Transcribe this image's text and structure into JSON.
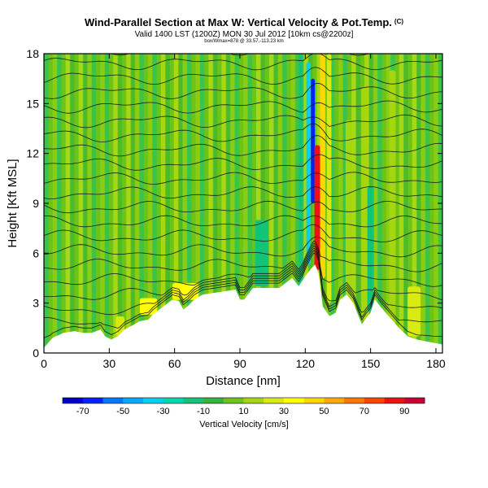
{
  "header": {
    "title": "Wind-Parallel Section at Max W: Vertical Velocity & Pot.Temp.",
    "title_mark": "(C)",
    "subtitle": "Valid 1400 LST (1200Z) MON 30 Jul 2012 [10km cs@2200z]",
    "subsubtitle": "box/Wmax=878 @ 33.57,-113.23 km"
  },
  "chart_data": {
    "type": "heatmap",
    "xlabel": "Distance [nm]",
    "ylabel": "Height [Kft MSL]",
    "xlim": [
      0,
      183
    ],
    "ylim": [
      0,
      18
    ],
    "x_ticks": [
      0,
      30,
      60,
      90,
      120,
      150,
      180
    ],
    "y_ticks": [
      0,
      3,
      6,
      9,
      12,
      15,
      18
    ],
    "x_tick_labels": [
      "0",
      "30",
      "60",
      "90",
      "120",
      "150",
      "180"
    ],
    "y_tick_labels": [
      "0",
      "3",
      "6",
      "9",
      "12",
      "15",
      "18"
    ],
    "colorbar": {
      "label": "Vertical Velocity [cm/s]",
      "tick_labels": [
        "-70",
        "-50",
        "-30",
        "-10",
        "10",
        "30",
        "50",
        "70",
        "90"
      ],
      "tick_values": [
        -70,
        -50,
        -30,
        -10,
        10,
        30,
        50,
        70,
        90
      ],
      "range": [
        -80,
        100
      ],
      "bins": [
        {
          "from": -80,
          "to": -70,
          "color": "#0000cc"
        },
        {
          "from": -70,
          "to": -60,
          "color": "#0022ff"
        },
        {
          "from": -60,
          "to": -50,
          "color": "#0077ff"
        },
        {
          "from": -50,
          "to": -40,
          "color": "#00aaff"
        },
        {
          "from": -40,
          "to": -30,
          "color": "#00d2f0"
        },
        {
          "from": -30,
          "to": -20,
          "color": "#00d8b0"
        },
        {
          "from": -20,
          "to": -10,
          "color": "#11c477"
        },
        {
          "from": -10,
          "to": 0,
          "color": "#33b43a"
        },
        {
          "from": 0,
          "to": 10,
          "color": "#6cc418"
        },
        {
          "from": 10,
          "to": 20,
          "color": "#a6d60e"
        },
        {
          "from": 20,
          "to": 30,
          "color": "#d8ea10"
        },
        {
          "from": 30,
          "to": 40,
          "color": "#ffff00"
        },
        {
          "from": 40,
          "to": 50,
          "color": "#ffd600"
        },
        {
          "from": 50,
          "to": 60,
          "color": "#ffaa00"
        },
        {
          "from": 60,
          "to": 70,
          "color": "#ff7700"
        },
        {
          "from": 70,
          "to": 80,
          "color": "#ff4400"
        },
        {
          "from": 80,
          "to": 90,
          "color": "#ee1111"
        },
        {
          "from": 90,
          "to": 100,
          "color": "#cc0033"
        }
      ]
    },
    "terrain_profile": {
      "x": [
        0,
        2,
        4,
        9,
        14,
        18,
        22,
        26,
        28,
        31,
        34,
        37,
        40,
        44,
        48,
        50,
        53,
        56,
        59,
        62,
        64,
        66,
        69,
        73,
        78,
        83,
        88,
        90,
        92,
        96,
        100,
        104,
        108,
        112,
        114,
        117,
        120,
        123,
        124.5,
        126,
        128,
        131,
        134,
        136,
        139,
        142,
        146,
        148,
        150,
        152,
        155,
        159,
        163,
        167,
        171,
        175,
        179,
        183
      ],
      "height": [
        0.3,
        0.6,
        0.9,
        1.2,
        1.3,
        1.2,
        1.2,
        1.4,
        1.0,
        0.8,
        1.0,
        1.4,
        1.6,
        1.9,
        2.0,
        2.3,
        2.6,
        2.9,
        3.2,
        3.1,
        2.6,
        2.8,
        3.2,
        3.5,
        3.6,
        3.7,
        3.8,
        3.2,
        3.2,
        3.9,
        3.9,
        3.9,
        3.9,
        4.3,
        4.5,
        4.0,
        4.6,
        5.1,
        5.3,
        4.8,
        2.8,
        2.2,
        2.4,
        3.2,
        3.5,
        3.0,
        1.7,
        2.1,
        2.4,
        3.2,
        2.7,
        2.1,
        1.5,
        1.0,
        0.8,
        0.7,
        0.6,
        0.5
      ]
    },
    "vertical_velocity_features": [
      {
        "x_center": 121.5,
        "width": 2.0,
        "y_range": [
          5.3,
          17.5
        ],
        "w": -40
      },
      {
        "x_center": 123.5,
        "width": 1.8,
        "y_range": [
          9.0,
          16.5
        ],
        "w": -70
      },
      {
        "x_center": 125.5,
        "width": 2.6,
        "y_range": [
          5.0,
          12.5
        ],
        "w": 85
      },
      {
        "x_center": 128,
        "width": 2.4,
        "y_range": [
          4.5,
          18
        ],
        "w": 40
      },
      {
        "x_center": 131,
        "width": 2.0,
        "y_range": [
          3.0,
          18
        ],
        "w": 25
      },
      {
        "x_center": 118,
        "width": 2.0,
        "y_range": [
          3.5,
          18
        ],
        "w": -20
      },
      {
        "x_center": 140,
        "width": 3.0,
        "y_range": [
          2.5,
          14
        ],
        "w": 15
      },
      {
        "x_center": 147,
        "width": 2.5,
        "y_range": [
          2.0,
          16
        ],
        "w": 15
      },
      {
        "x_center": 160,
        "width": 3.0,
        "y_range": [
          1.5,
          17
        ],
        "w": 15
      },
      {
        "x_center": 65,
        "width": 12,
        "y_range": [
          3.2,
          4.2
        ],
        "w": 35
      },
      {
        "x_center": 48,
        "width": 8,
        "y_range": [
          2.3,
          3.3
        ],
        "w": 30
      },
      {
        "x_center": 35,
        "width": 4,
        "y_range": [
          1.0,
          2.2
        ],
        "w": 20
      },
      {
        "x_center": 100,
        "width": 6,
        "y_range": [
          4.0,
          8.0
        ],
        "w": -15
      },
      {
        "x_center": 150,
        "width": 3,
        "y_range": [
          2.5,
          10
        ],
        "w": -15
      },
      {
        "x_center": 170,
        "width": 6,
        "y_range": [
          1.0,
          4.0
        ],
        "w": 20
      }
    ],
    "theta_contours_count": 21,
    "grid": false
  }
}
